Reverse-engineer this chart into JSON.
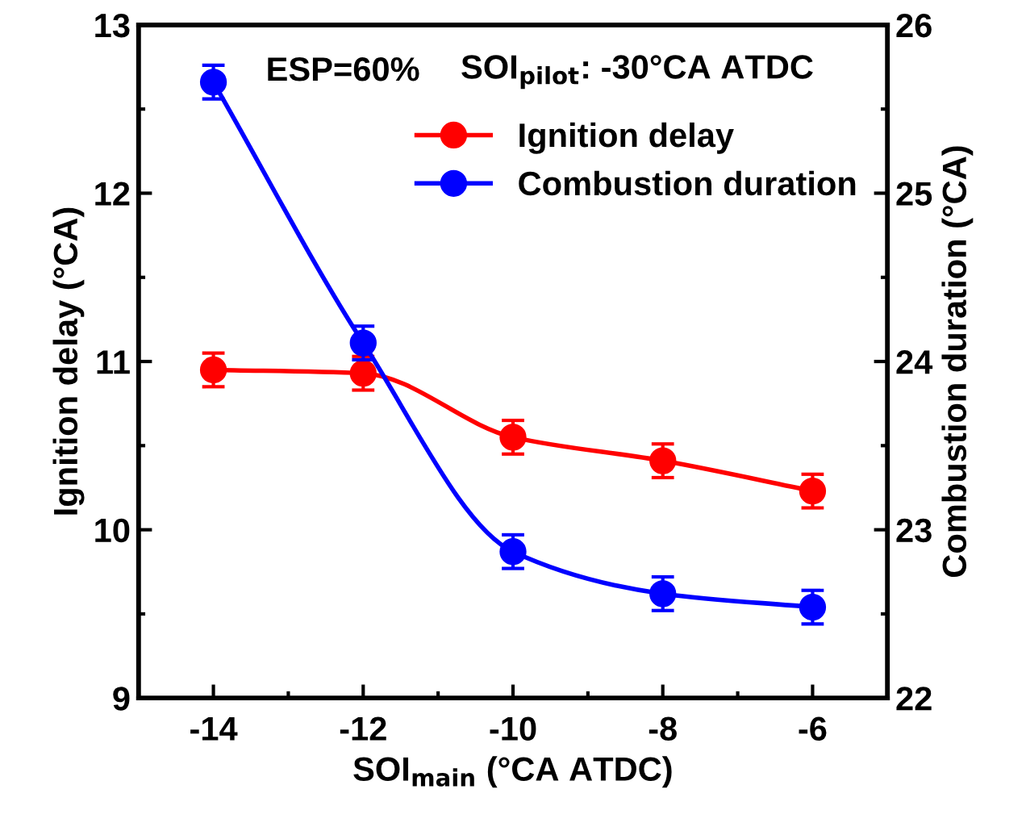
{
  "chart_data": {
    "type": "line",
    "xlabel": "SOI$_{main}$ (°CA ATDC)",
    "ylabel": "Ignition delay (°CA)",
    "y2label": "Combustion duration (°CA)",
    "x": [
      -14,
      -12,
      -10,
      -8,
      -6
    ],
    "series": [
      {
        "name": "Ignition delay",
        "color": "#ff0000",
        "values": [
          10.95,
          10.93,
          10.55,
          10.41,
          10.23
        ],
        "errors": [
          0.1,
          0.1,
          0.1,
          0.1,
          0.1
        ]
      },
      {
        "name": "Combustion duration",
        "color": "#0000ff",
        "axis": "y2",
        "values": [
          25.66,
          24.11,
          22.87,
          22.62,
          22.54
        ],
        "errors": [
          0.1,
          0.1,
          0.1,
          0.1,
          0.1
        ]
      }
    ],
    "xlim": [
      -15,
      -5
    ],
    "xticks": [
      -14,
      -12,
      -10,
      -8,
      -6
    ],
    "ylim": [
      9,
      13
    ],
    "yticks": [
      9,
      10,
      11,
      12,
      13
    ],
    "y2lim": [
      22,
      26
    ],
    "y2ticks": [
      22,
      23,
      24,
      25,
      26
    ],
    "annotations": [
      "ESP=60%",
      "SOI$_{pilot}$: -30°CA ATDC"
    ],
    "marker": "circle",
    "legend": "top right",
    "grid": false
  }
}
